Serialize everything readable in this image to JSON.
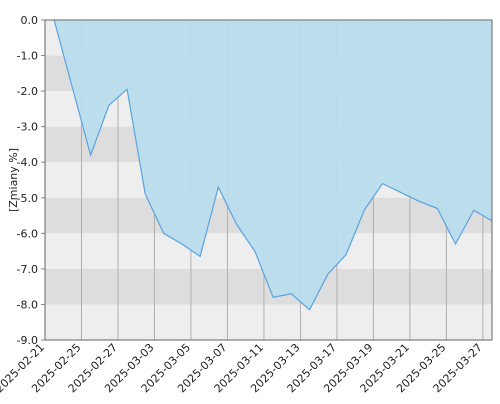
{
  "chart_data": {
    "type": "area",
    "y_label": "[Zmiany %]",
    "categories": [
      "2025-02-21",
      null,
      "2025-02-25",
      null,
      "2025-02-27",
      null,
      "2025-03-03",
      null,
      "2025-03-05",
      null,
      "2025-03-07",
      null,
      "2025-03-11",
      null,
      "2025-03-13",
      null,
      "2025-03-17",
      null,
      "2025-03-19",
      null,
      "2025-03-21",
      null,
      "2025-03-25",
      null,
      "2025-03-27"
    ],
    "series": [
      {
        "color": "#5ba3df",
        "fill": "#b8dcec",
        "values": [
          0.0,
          -1.9,
          -3.8,
          -2.4,
          -1.95,
          -4.9,
          -6.0,
          -6.3,
          -6.65,
          -4.7,
          -5.75,
          -6.5,
          -7.8,
          -7.7,
          -8.15,
          -7.15,
          -6.6,
          -5.35,
          -4.6,
          -4.85,
          -5.1,
          -5.3,
          -6.3,
          -5.35,
          -5.65
        ]
      }
    ],
    "ylim": [
      -9,
      0
    ],
    "yticks": [
      {
        "value": 0,
        "label": "0.0"
      },
      {
        "value": -1,
        "label": "-1.0"
      },
      {
        "value": -2,
        "label": "-2.0"
      },
      {
        "value": -3,
        "label": "-3.0"
      },
      {
        "value": -4,
        "label": "-4.0"
      },
      {
        "value": -5,
        "label": "-5.0"
      },
      {
        "value": -6,
        "label": "-6.0"
      },
      {
        "value": -7,
        "label": "-7.0"
      },
      {
        "value": -8,
        "label": "-8.0"
      },
      {
        "value": -9,
        "label": "-9.0"
      }
    ],
    "band_colors": [
      "#eeeeee",
      "#dddddd"
    ],
    "grid": true
  }
}
